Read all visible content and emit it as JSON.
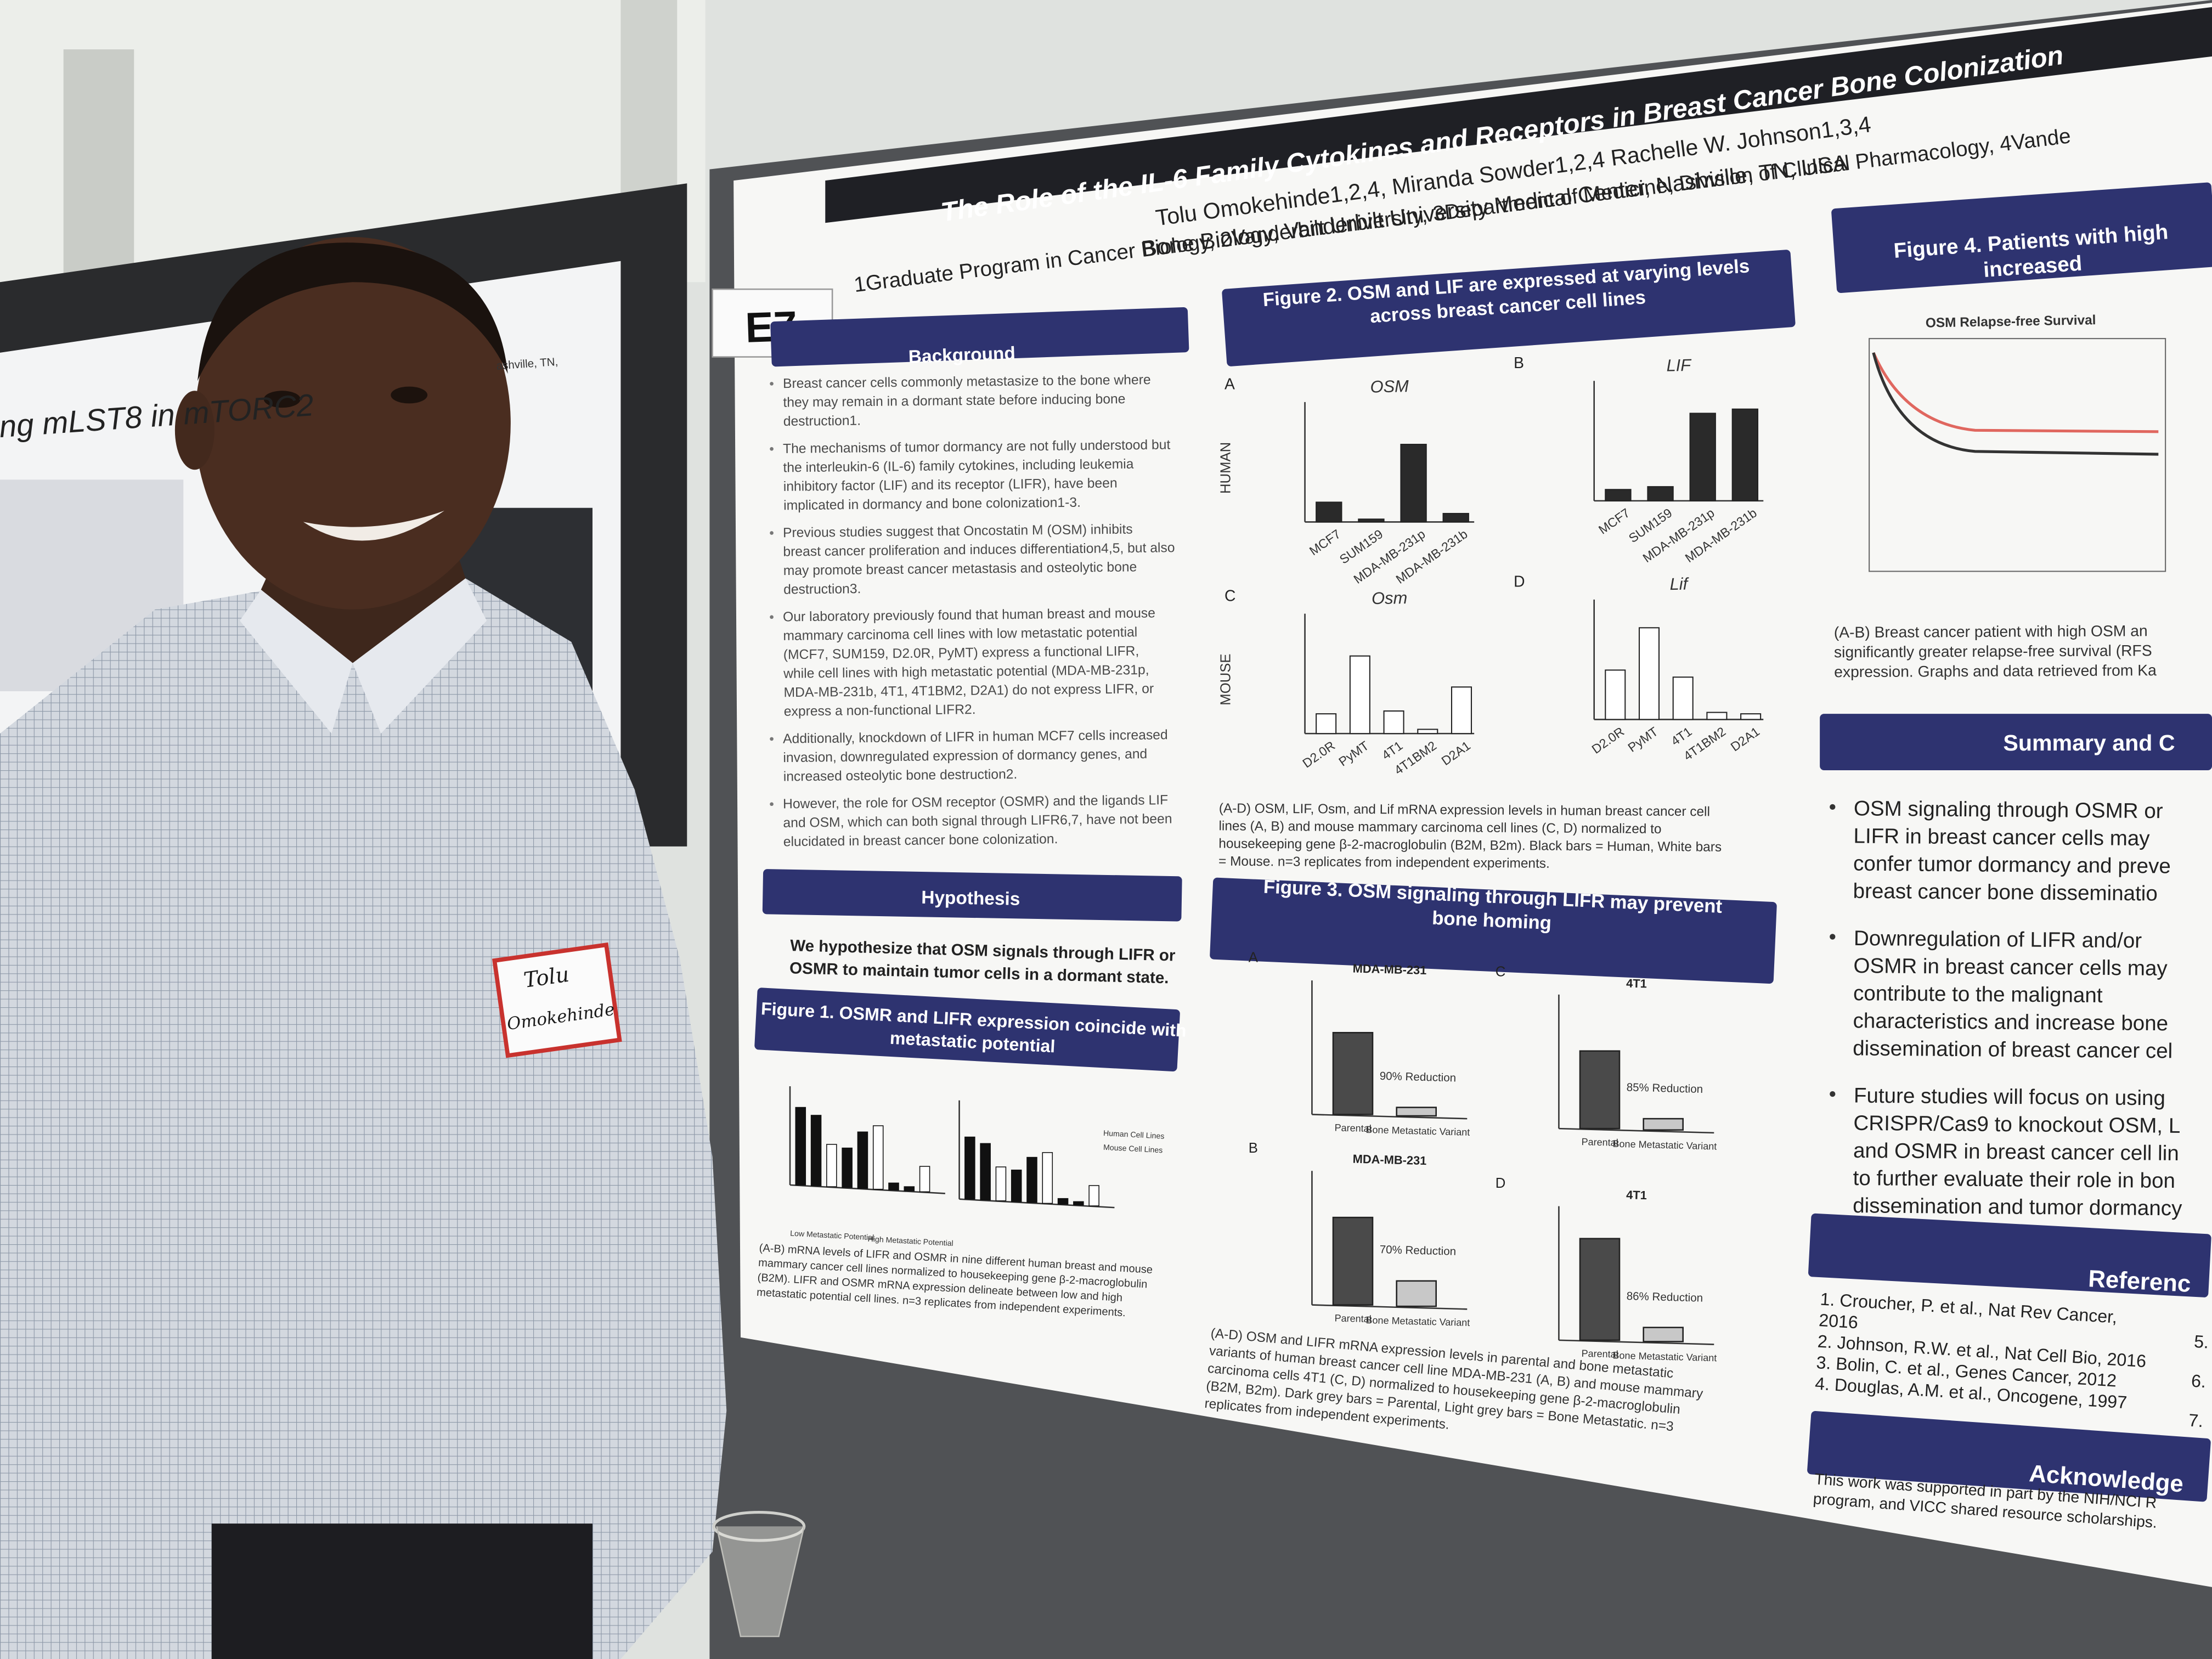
{
  "left_poster": {
    "title": "ng mLST8 in mTORC2",
    "affiliation": "ashville, TN,"
  },
  "name_tag": [
    "Tolu",
    "Omokehinde"
  ],
  "board_label": "E7",
  "poster": {
    "title": "The Role of the IL-6 Family Cytokines and Receptors in Breast Cancer Bone Colonization",
    "authors": "Tolu Omokehinde1,2,4, Miranda Sowder1,2,4 Rachelle W. Johnson1,3,4",
    "affiliations": [
      "1Graduate Program in Cancer Biology, 2Vanderbilt University, 3Department of Medicine, Division of Clinical Pharmacology, 4Vande",
      "Bone Biology, Vanderbilt University Medical Center, Nashville, TN, USA"
    ],
    "background": {
      "heading": "Background",
      "items": [
        [
          "Breast cancer cells commonly metastasize to the bone where",
          "they may remain in a dormant state before inducing bone",
          "destruction1."
        ],
        [
          "The mechanisms of tumor dormancy are not fully understood but",
          "the interleukin-6 (IL-6) family cytokines, including leukemia",
          "inhibitory factor (LIF) and its receptor (LIFR), have been",
          "implicated in dormancy and bone colonization1-3."
        ],
        [
          "Previous studies suggest that Oncostatin M (OSM) inhibits",
          "breast cancer proliferation and induces differentiation4,5, but also",
          "may promote breast cancer metastasis and osteolytic bone",
          "destruction3."
        ],
        [
          "Our laboratory previously found that human breast and mouse",
          "mammary carcinoma cell lines with low metastatic potential",
          "(MCF7, SUM159, D2.0R, PyMT) express a functional LIFR,",
          "while cell lines with high metastatic potential (MDA-MB-231p,",
          "MDA-MB-231b, 4T1, 4T1BM2, D2A1) do not express LIFR, or",
          "express a non-functional LIFR2."
        ],
        [
          "Additionally, knockdown of LIFR in human MCF7 cells increased",
          "invasion, downregulated expression of dormancy genes, and",
          "increased osteolytic bone destruction2."
        ],
        [
          "However, the role for OSM receptor (OSMR) and the ligands LIF",
          "and OSM, which can both signal through LIFR6,7, have not been",
          "elucidated in breast cancer bone colonization."
        ]
      ]
    },
    "hypothesis": {
      "heading": "Hypothesis",
      "text": [
        "We hypothesize that OSM signals through LIFR or",
        "OSMR to maintain tumor cells in a dormant state."
      ]
    },
    "figures": [
      {
        "title": [
          "Figure 1. OSMR and LIFR expression coincide with",
          "metastatic potential"
        ],
        "caption": [
          "(A-B) mRNA levels of LIFR and OSMR in nine different human breast and mouse",
          "mammary cancer cell lines normalized to housekeeping gene β-2-macroglobulin",
          "(B2M). LIFR and OSMR mRNA expression delineate between low and high",
          "metastatic potential cell lines. n=3 replicates from independent experiments."
        ],
        "labels": [
          "Low Metastatic Potential",
          "High Metastatic Potential",
          "Human Cell Lines",
          "Mouse Cell Lines"
        ]
      },
      {
        "title": [
          "Figure 2. OSM and LIF are expressed at varying levels",
          "across breast cancer cell lines"
        ],
        "caption": [
          "(A-D) OSM, LIF, Osm, and Lif mRNA expression levels in human breast cancer cell",
          "lines (A, B) and mouse mammary carcinoma cell lines (C, D) normalized to",
          "housekeeping gene β-2-macroglobulin (B2M, B2m). Black bars = Human, White bars",
          "= Mouse. n=3 replicates from independent experiments."
        ],
        "panels": [
          {
            "letter": "A",
            "name": "OSM",
            "categories": [
              "MCF7",
              "SUM159",
              "MDA-MB-231p",
              "MDA-MB-231b"
            ]
          },
          {
            "letter": "B",
            "name": "LIF",
            "categories": [
              "MCF7",
              "SUM159",
              "MDA-MB-231p",
              "MDA-MB-231b"
            ]
          },
          {
            "letter": "C",
            "name": "Osm",
            "categories": [
              "D2.0R",
              "PyMT",
              "4T1",
              "4T1BM2",
              "D2A1"
            ]
          },
          {
            "letter": "D",
            "name": "Lif",
            "categories": [
              "D2.0R",
              "PyMT",
              "4T1",
              "4T1BM2",
              "D2A1"
            ]
          }
        ],
        "rows": [
          "HUMAN",
          "MOUSE"
        ]
      },
      {
        "title": [
          "Figure 3. OSM signaling through LIFR may prevent",
          "bone homing"
        ],
        "caption": [
          "(A-D) OSM and LIFR mRNA expression levels in parental and bone metastatic",
          "variants of human breast cancer cell line MDA-MB-231 (A, B) and mouse mammary",
          "carcinoma cells 4T1 (C, D) normalized to housekeeping gene β-2-macroglobulin",
          "(B2M, B2m). Dark grey bars = Parental, Light grey bars = Bone Metastatic. n=3",
          "replicates from independent experiments."
        ],
        "panels": [
          {
            "letter": "A",
            "name": "MDA-MB-231",
            "reduction": "90% Reduction"
          },
          {
            "letter": "C",
            "name": "4T1",
            "reduction": "85% Reduction"
          },
          {
            "letter": "B",
            "name": "MDA-MB-231",
            "reduction": "70% Reduction"
          },
          {
            "letter": "D",
            "name": "4T1",
            "reduction": "86% Reduction"
          }
        ],
        "categories": [
          "Parental",
          "Bone Metastatic Variant"
        ]
      },
      {
        "title": [
          "Figure 4. Patients with high",
          "increased"
        ],
        "chart_title": "OSM Relapse-free Survival",
        "caption": [
          "(A-B) Breast cancer patient with high OSM an",
          "significantly greater relapse-free survival (RFS",
          "expression. Graphs and data retrieved from Ka"
        ]
      }
    ],
    "summary": {
      "heading": "Summary and C",
      "items": [
        [
          "OSM signaling through OSMR or",
          "LIFR in breast cancer cells may",
          "confer tumor dormancy and preve",
          "breast cancer bone disseminatio"
        ],
        [
          "Downregulation of LIFR and/or",
          "OSMR in breast cancer cells may",
          "contribute to the malignant",
          "characteristics and increase bone",
          "dissemination of breast cancer cel"
        ],
        [
          "Future studies will focus on using",
          "CRISPR/Cas9 to knockout OSM, L",
          "and OSMR in breast cancer cell lin",
          "to further evaluate their role in bon",
          "dissemination and tumor dormancy"
        ]
      ]
    },
    "references": {
      "heading": "Referenc",
      "items": [
        "1. Croucher, P. et al., Nat Rev Cancer,",
        "2016",
        "2. Johnson, R.W. et al., Nat Cell Bio, 2016",
        "3. Bolin, C. et al., Genes Cancer, 2012",
        "4. Douglas, A.M. et al., Oncogene, 1997"
      ],
      "more": [
        "5.",
        "6.",
        "7."
      ]
    },
    "acknowledgements": {
      "heading": "Acknowledge",
      "text": [
        "This work was supported in part by the NIH/NCI R",
        "program, and VICC shared resource scholarships."
      ]
    }
  }
}
